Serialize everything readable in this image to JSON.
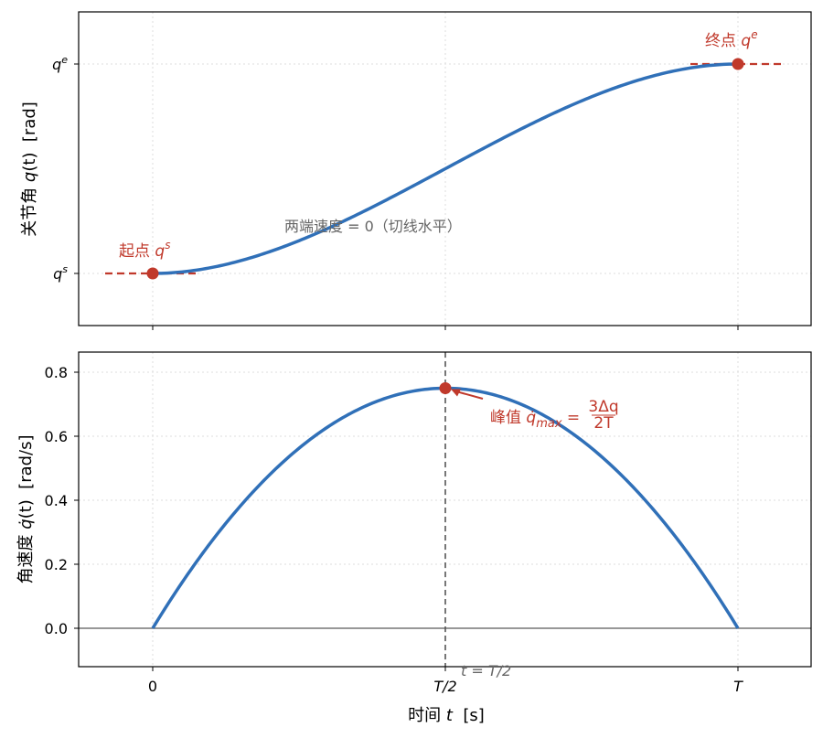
{
  "colors": {
    "curve": "#3070b8",
    "marker": "#c0392b",
    "text_gray": "#666666",
    "grid": "#dddddd"
  },
  "chart_data": [
    {
      "type": "line",
      "name": "position",
      "x_range": [
        0,
        1
      ],
      "ylabel": {
        "pre": "关节角 ",
        "var": "q",
        "arg": "(t)",
        "unit": "  [rad]"
      },
      "y_ticks": [
        {
          "value": 0,
          "base": "q",
          "sup": "s"
        },
        {
          "value": 1,
          "base": "q",
          "sup": "e"
        }
      ],
      "curve": "cubic",
      "start_point": {
        "x": 0,
        "y": 0,
        "label_cn": "起点 ",
        "label_var": "q",
        "label_sup": "s"
      },
      "end_point": {
        "x": 1,
        "y": 1,
        "label_cn": "终点 ",
        "label_var": "q",
        "label_sup": "e"
      },
      "note": "两端速度 = 0（切线水平）",
      "grid": true
    },
    {
      "type": "line",
      "name": "velocity",
      "x_range": [
        0,
        1
      ],
      "ylim": [
        -0.12,
        0.86
      ],
      "ylabel": {
        "pre": "角速度 ",
        "var": "q̇",
        "arg": "(t)",
        "unit": "  [rad/s]"
      },
      "y_ticks": [
        "0.0",
        "0.2",
        "0.4",
        "0.6",
        "0.8"
      ],
      "y_tick_values": [
        0,
        0.2,
        0.4,
        0.6,
        0.8
      ],
      "peak": {
        "x": 0.5,
        "y": 0.75,
        "label_cn": "峰值 ",
        "label_var": "q̇",
        "label_sub": "max",
        "label_eq": " = ",
        "frac_num": "3Δq",
        "frac_den": "2T"
      },
      "midline_label": "t = T/2",
      "grid": true
    }
  ],
  "x_ticks": [
    {
      "value": 0,
      "label": "0"
    },
    {
      "value": 0.5,
      "label": "T/2"
    },
    {
      "value": 1,
      "label": "T"
    }
  ],
  "xlabel": {
    "pre": "时间 ",
    "var": "t",
    "unit": "  [s]"
  }
}
